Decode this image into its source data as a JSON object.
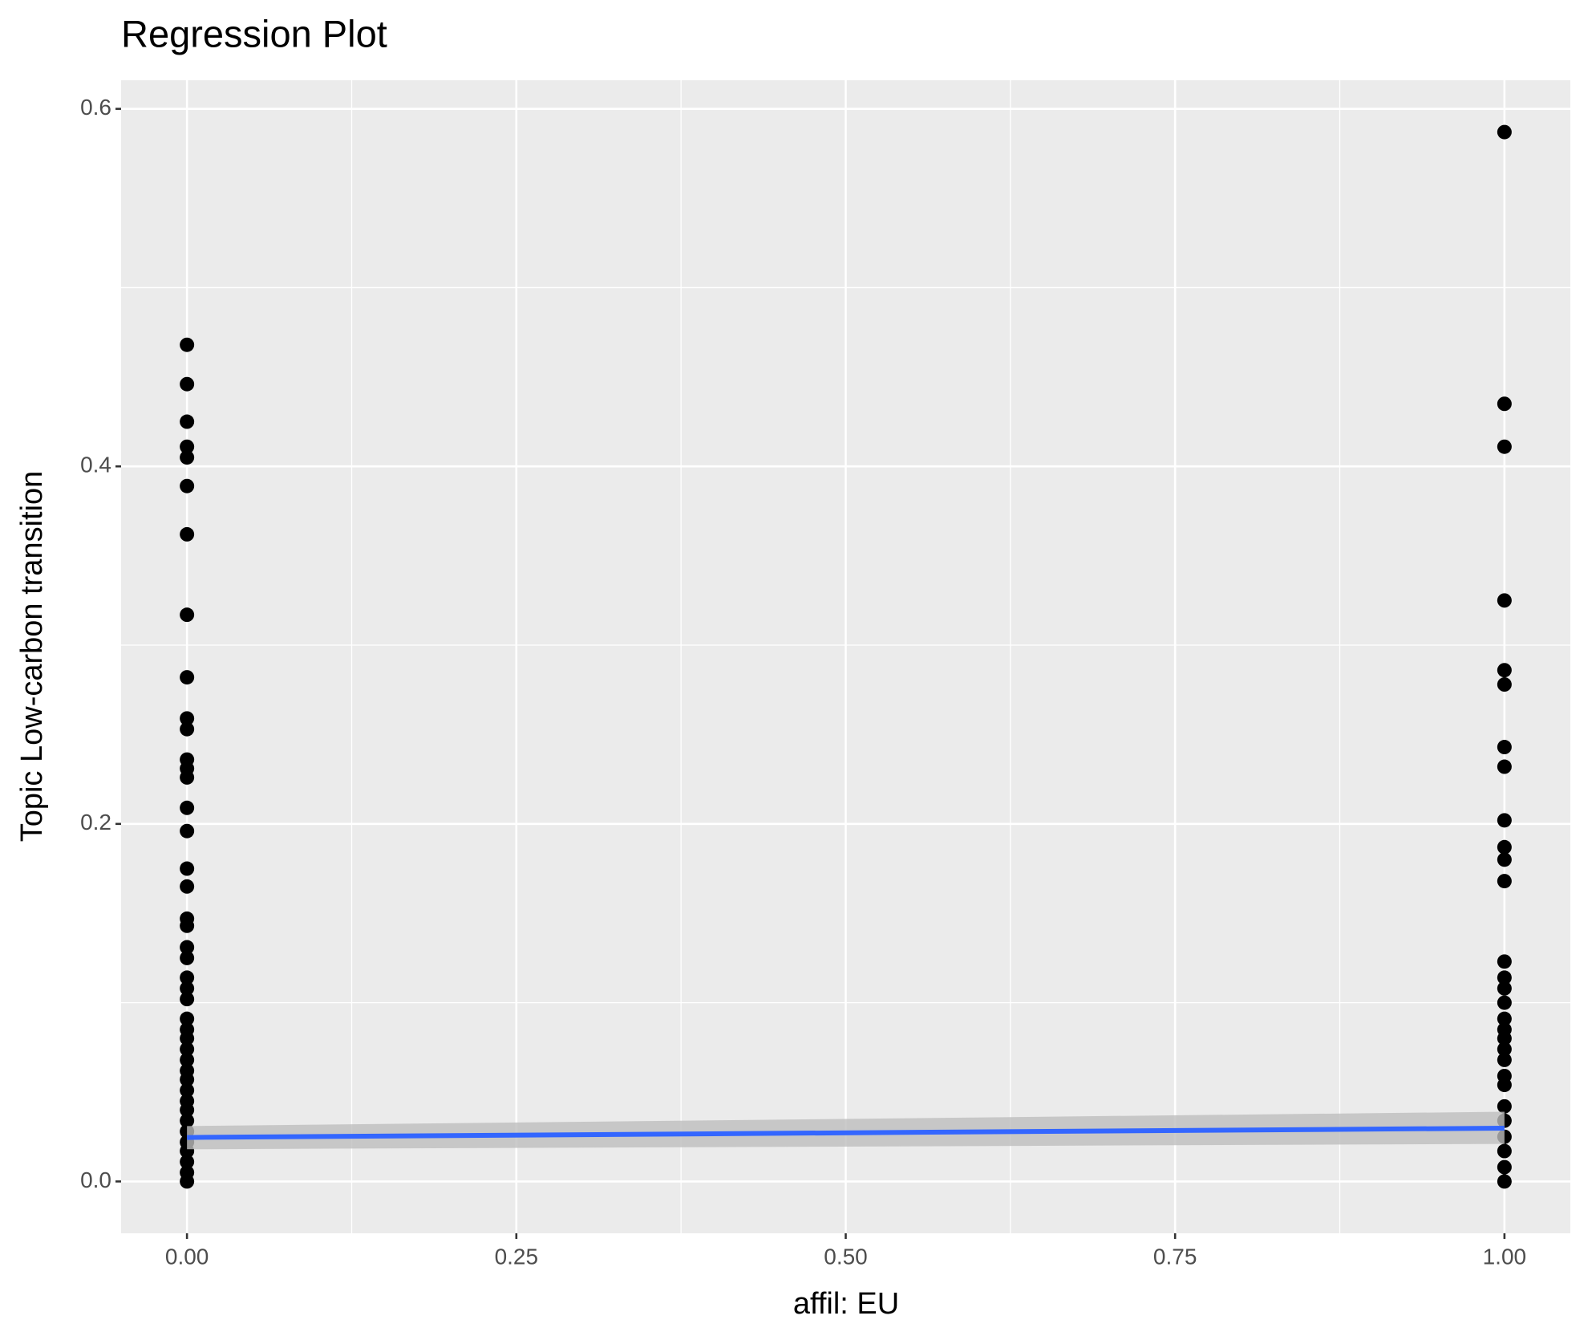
{
  "chart_data": {
    "type": "scatter",
    "title": "Regression Plot",
    "x_label": "affil: EU",
    "y_label": "Topic Low-carbon transition",
    "xlim": [
      -0.05,
      1.05
    ],
    "ylim": [
      -0.029,
      0.616
    ],
    "xticks": [
      {
        "value": 0,
        "label": "0.00"
      },
      {
        "value": 0.25,
        "label": "0.25"
      },
      {
        "value": 0.5,
        "label": "0.50"
      },
      {
        "value": 0.75,
        "label": "0.75"
      },
      {
        "value": 1,
        "label": "1.00"
      }
    ],
    "yticks": [
      {
        "value": 0,
        "label": "0.0"
      },
      0.2,
      0.4,
      0.6
    ],
    "x_minor_grid": [
      0.125,
      0.375,
      0.625,
      0.875
    ],
    "y_minor_grid": [
      0.1,
      0.3,
      0.5
    ],
    "grid": true,
    "series": [
      {
        "color": "#000000",
        "x": [
          0,
          0,
          0,
          0,
          0,
          0,
          0,
          0,
          0,
          0,
          0,
          0,
          0,
          0,
          0,
          0,
          0,
          0,
          0,
          0,
          0,
          0,
          0,
          0,
          0,
          0,
          0,
          0,
          0,
          0,
          0,
          0,
          0,
          0,
          0,
          0,
          0,
          0,
          0,
          0,
          0,
          0,
          1,
          1,
          1,
          1,
          1,
          1,
          1,
          1,
          1,
          1,
          1,
          1,
          1,
          1,
          1,
          1,
          1,
          1,
          1,
          1,
          1,
          1,
          1,
          1,
          1,
          1,
          1,
          1,
          1
        ],
        "values": [
          0.468,
          0.446,
          0.425,
          0.411,
          0.405,
          0.389,
          0.362,
          0.317,
          0.282,
          0.259,
          0.253,
          0.236,
          0.231,
          0.226,
          0.209,
          0.196,
          0.175,
          0.165,
          0.147,
          0.143,
          0.131,
          0.125,
          0.114,
          0.108,
          0.102,
          0.091,
          0.085,
          0.08,
          0.074,
          0.068,
          0.062,
          0.057,
          0.051,
          0.045,
          0.04,
          0.034,
          0.028,
          0.022,
          0.017,
          0.011,
          0.005,
          0,
          0.587,
          0.435,
          0.411,
          0.325,
          0.286,
          0.278,
          0.243,
          0.232,
          0.202,
          0.187,
          0.18,
          0.168,
          0.123,
          0.114,
          0.108,
          0.1,
          0.091,
          0.085,
          0.08,
          0.074,
          0.068,
          0.059,
          0.054,
          0.042,
          0.034,
          0.025,
          0.017,
          0.008,
          0
        ]
      }
    ],
    "regression": {
      "color": "#3366ff",
      "band_color": "#bebebe",
      "x": [
        0,
        1
      ],
      "values": [
        0.0246,
        0.0298
      ],
      "lower": [
        0.018,
        0.021
      ],
      "upper": [
        0.031,
        0.039
      ]
    }
  }
}
